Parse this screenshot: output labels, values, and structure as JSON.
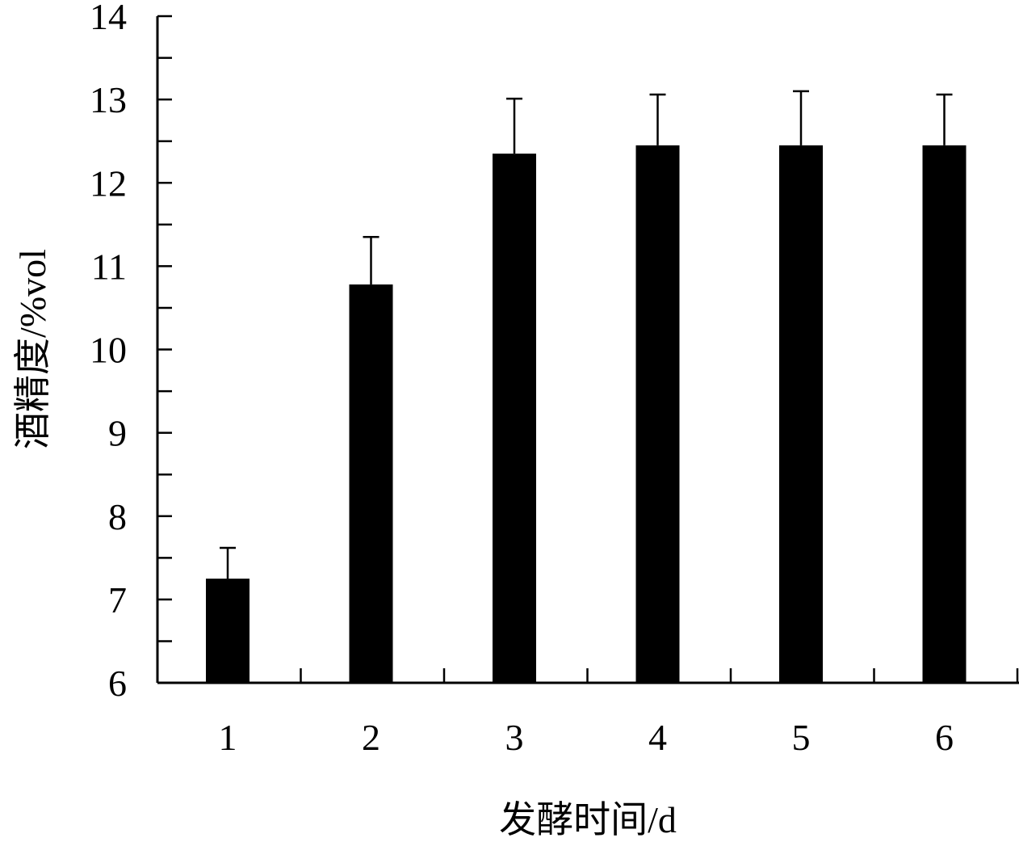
{
  "chart_data": {
    "type": "bar",
    "xlabel": "发酵时间/d",
    "ylabel": "酒精度/%vol",
    "categories": [
      "1",
      "2",
      "3",
      "4",
      "5",
      "6"
    ],
    "values": [
      7.25,
      10.78,
      12.35,
      12.45,
      12.45,
      12.45
    ],
    "error_upper": [
      0.37,
      0.57,
      0.66,
      0.61,
      0.65,
      0.61
    ],
    "ylim": [
      6,
      14
    ],
    "yticks": [
      6,
      7,
      8,
      9,
      10,
      11,
      12,
      13,
      14
    ],
    "grid": false,
    "bar_color": "#000000"
  }
}
